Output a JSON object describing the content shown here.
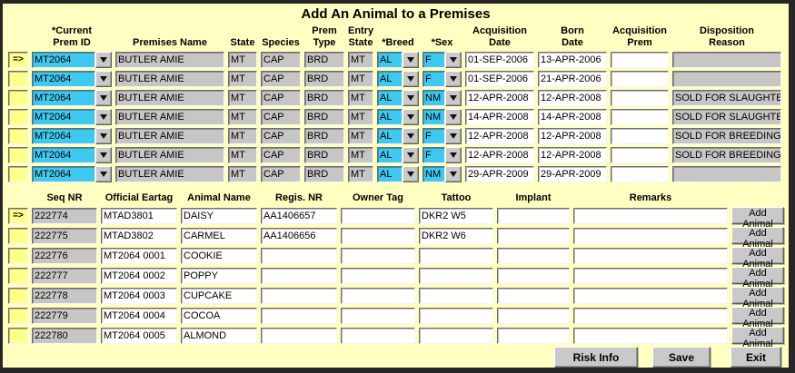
{
  "window": {
    "title": "Add An Animal to a Premises"
  },
  "colors": {
    "background": "#FFFFC2",
    "field_editable_cyan": "#3FC8F0",
    "field_readonly_gray": "#C6C6C6",
    "field_editable_white": "#FFFFFF",
    "row_indicator_yellow": "#FFFF8C",
    "button_face": "#C9C9C9",
    "window_frame": "#262626"
  },
  "icons": {
    "dropdown_arrow": "down-triangle",
    "row_pointer": "=>"
  },
  "table1": {
    "headers": {
      "prem_id": "*Current\nPrem ID",
      "premises_name": "Premises Name",
      "state": "State",
      "species": "Species",
      "prem_type": "Prem\nType",
      "entry_state": "Entry\nState",
      "breed": "*Breed",
      "sex": "*Sex",
      "acq_date": "Acquisition\nDate",
      "born_date": "Born\nDate",
      "acq_prem": "Acquisition\nPrem",
      "disposition": "Disposition\nReason"
    },
    "rows": [
      {
        "ind": "=>",
        "prem_id": "MT2064",
        "premises_name": "BUTLER AMIE",
        "state": "MT",
        "species": "CAP",
        "prem_type": "BRD",
        "entry_state": "MT",
        "breed": "AL",
        "sex": "F",
        "acq_date": "01-SEP-2006",
        "born_date": "13-APR-2006",
        "acq_prem": "",
        "disposition": ""
      },
      {
        "ind": "",
        "prem_id": "MT2064",
        "premises_name": "BUTLER AMIE",
        "state": "MT",
        "species": "CAP",
        "prem_type": "BRD",
        "entry_state": "MT",
        "breed": "AL",
        "sex": "F",
        "acq_date": "01-SEP-2006",
        "born_date": "21-APR-2006",
        "acq_prem": "",
        "disposition": ""
      },
      {
        "ind": "",
        "prem_id": "MT2064",
        "premises_name": "BUTLER AMIE",
        "state": "MT",
        "species": "CAP",
        "prem_type": "BRD",
        "entry_state": "MT",
        "breed": "AL",
        "sex": "NM",
        "acq_date": "12-APR-2008",
        "born_date": "12-APR-2008",
        "acq_prem": "",
        "disposition": "SOLD FOR SLAUGHTER"
      },
      {
        "ind": "",
        "prem_id": "MT2064",
        "premises_name": "BUTLER AMIE",
        "state": "MT",
        "species": "CAP",
        "prem_type": "BRD",
        "entry_state": "MT",
        "breed": "AL",
        "sex": "NM",
        "acq_date": "14-APR-2008",
        "born_date": "14-APR-2008",
        "acq_prem": "",
        "disposition": "SOLD FOR SLAUGHTER"
      },
      {
        "ind": "",
        "prem_id": "MT2064",
        "premises_name": "BUTLER AMIE",
        "state": "MT",
        "species": "CAP",
        "prem_type": "BRD",
        "entry_state": "MT",
        "breed": "AL",
        "sex": "F",
        "acq_date": "12-APR-2008",
        "born_date": "12-APR-2008",
        "acq_prem": "",
        "disposition": "SOLD FOR BREEDING"
      },
      {
        "ind": "",
        "prem_id": "MT2064",
        "premises_name": "BUTLER AMIE",
        "state": "MT",
        "species": "CAP",
        "prem_type": "BRD",
        "entry_state": "MT",
        "breed": "AL",
        "sex": "F",
        "acq_date": "12-APR-2008",
        "born_date": "12-APR-2008",
        "acq_prem": "",
        "disposition": "SOLD FOR BREEDING"
      },
      {
        "ind": "",
        "prem_id": "MT2064",
        "premises_name": "BUTLER AMIE",
        "state": "MT",
        "species": "CAP",
        "prem_type": "BRD",
        "entry_state": "MT",
        "breed": "AL",
        "sex": "NM",
        "acq_date": "29-APR-2009",
        "born_date": "29-APR-2009",
        "acq_prem": "",
        "disposition": ""
      }
    ]
  },
  "table2": {
    "headers": {
      "seq": "Seq NR",
      "eartag": "Official Eartag",
      "name": "Animal Name",
      "regis": "Regis. NR",
      "owner": "Owner Tag",
      "tattoo": "Tattoo",
      "implant": "Implant",
      "remarks": "Remarks"
    },
    "add_label": "Add Animal",
    "rows": [
      {
        "ind": "=>",
        "seq": "222774",
        "eartag": "MTAD3801",
        "name": "DAISY",
        "regis": "AA1406657",
        "owner": "",
        "tattoo": "DKR2 W5",
        "implant": "",
        "remarks": ""
      },
      {
        "ind": "",
        "seq": "222775",
        "eartag": "MTAD3802",
        "name": "CARMEL",
        "regis": "AA1406656",
        "owner": "",
        "tattoo": "DKR2 W6",
        "implant": "",
        "remarks": ""
      },
      {
        "ind": "",
        "seq": "222776",
        "eartag": "MT2064 0001",
        "name": "COOKIE",
        "regis": "",
        "owner": "",
        "tattoo": "",
        "implant": "",
        "remarks": ""
      },
      {
        "ind": "",
        "seq": "222777",
        "eartag": "MT2064 0002",
        "name": "POPPY",
        "regis": "",
        "owner": "",
        "tattoo": "",
        "implant": "",
        "remarks": ""
      },
      {
        "ind": "",
        "seq": "222778",
        "eartag": "MT2064 0003",
        "name": "CUPCAKE",
        "regis": "",
        "owner": "",
        "tattoo": "",
        "implant": "",
        "remarks": ""
      },
      {
        "ind": "",
        "seq": "222779",
        "eartag": "MT2064 0004",
        "name": "COCOA",
        "regis": "",
        "owner": "",
        "tattoo": "",
        "implant": "",
        "remarks": ""
      },
      {
        "ind": "",
        "seq": "222780",
        "eartag": "MT2064 0005",
        "name": "ALMOND",
        "regis": "",
        "owner": "",
        "tattoo": "",
        "implant": "",
        "remarks": ""
      }
    ]
  },
  "footer": {
    "risk_info": "Risk Info",
    "save": "Save",
    "exit": "Exit"
  }
}
